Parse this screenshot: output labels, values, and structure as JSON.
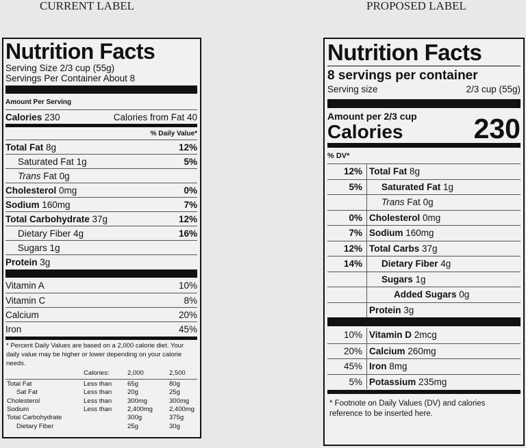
{
  "current": {
    "heading": "CURRENT LABEL",
    "title": "Nutrition Facts",
    "serving_size": "Serving Size 2/3 cup (55g)",
    "servings": "Servings Per Container About 8",
    "amount_per_serving": "Amount Per Serving",
    "calories": {
      "label": "Calories",
      "value": "230",
      "from_fat": "Calories from Fat 40"
    },
    "dv_header": "% Daily Value*",
    "nutrients": [
      {
        "name": "Total Fat",
        "amount": "8g",
        "dv": "12%"
      },
      {
        "name": "Saturated Fat",
        "amount": "1g",
        "dv": "5%"
      },
      {
        "prefix": "Trans",
        "name": "Fat",
        "amount": "0g"
      },
      {
        "name": "Cholesterol",
        "amount": "0mg",
        "dv": "0%"
      },
      {
        "name": "Sodium",
        "amount": "160mg",
        "dv": "7%"
      },
      {
        "name": "Total Carbohydrate",
        "amount": "37g",
        "dv": "12%"
      },
      {
        "name": "Dietary Fiber",
        "amount": "4g",
        "dv": "16%"
      },
      {
        "name": "Sugars",
        "amount": "1g"
      },
      {
        "name": "Protein",
        "amount": "3g"
      }
    ],
    "vitamins": [
      {
        "name": "Vitamin A",
        "dv": "10%"
      },
      {
        "name": "Vitamin C",
        "dv": "8%"
      },
      {
        "name": "Calcium",
        "dv": "20%"
      },
      {
        "name": "Iron",
        "dv": "45%"
      }
    ],
    "footnote": "* Percent Daily Values are based on a 2,000 calorie diet. Your daily value may be higher or lower depending on your calorie needs.",
    "reference_table": {
      "header": {
        "calories": "Calories:",
        "low": "2,000",
        "high": "2,500"
      },
      "rows": [
        {
          "name": "Total Fat",
          "limit": "Less than",
          "low": "65g",
          "high": "80g"
        },
        {
          "name": "Sat Fat",
          "limit": "Less than",
          "low": "20g",
          "high": "25g"
        },
        {
          "name": "Cholesterol",
          "limit": "Less than",
          "low": "300mg",
          "high": "300mg"
        },
        {
          "name": "Sodium",
          "limit": "Less than",
          "low": "2,400mg",
          "high": "2,400mg"
        },
        {
          "name": "Total Carbohydrate",
          "low": "300g",
          "high": "375g"
        },
        {
          "name": "Dietary Fiber",
          "low": "25g",
          "high": "30g"
        }
      ]
    }
  },
  "proposed": {
    "heading": "PROPOSED LABEL",
    "title": "Nutrition Facts",
    "servings": "8 servings per container",
    "serving_size_label": "Serving size",
    "serving_size": "2/3 cup (55g)",
    "amount_per": "Amount per 2/3 cup",
    "calories_label": "Calories",
    "calories_value": "230",
    "dv_header": "% DV*",
    "nutrients": [
      {
        "dv": "12%",
        "name": "Total Fat",
        "amount": "8g"
      },
      {
        "dv": "5%",
        "name": "Saturated Fat",
        "amount": "1g"
      },
      {
        "prefix": "Trans",
        "name": "Fat",
        "amount": "0g"
      },
      {
        "dv": "0%",
        "name": "Cholesterol",
        "amount": "0mg"
      },
      {
        "dv": "7%",
        "name": "Sodium",
        "amount": "160mg"
      },
      {
        "dv": "12%",
        "name": "Total Carbs",
        "amount": "37g"
      },
      {
        "dv": "14%",
        "name": "Dietary Fiber",
        "amount": "4g"
      },
      {
        "name": "Sugars",
        "amount": "1g"
      },
      {
        "name": "Added Sugars",
        "amount": "0g"
      },
      {
        "name": "Protein",
        "amount": "3g"
      }
    ],
    "vitamins": [
      {
        "dv": "10%",
        "name": "Vitamin D",
        "amount": "2mcg"
      },
      {
        "dv": "20%",
        "name": "Calcium",
        "amount": "260mg"
      },
      {
        "dv": "45%",
        "name": "Iron",
        "amount": "8mg"
      },
      {
        "dv": "5%",
        "name": "Potassium",
        "amount": "235mg"
      }
    ],
    "footnote": "* Footnote on Daily Values (DV) and calories reference to be inserted here."
  }
}
